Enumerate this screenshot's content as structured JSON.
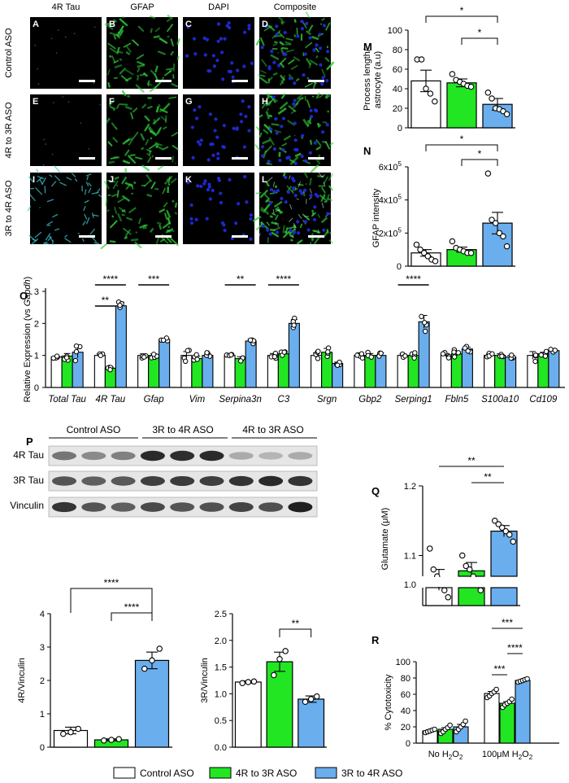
{
  "figure": {
    "micro": {
      "col_headers": [
        "4R Tau",
        "GFAP",
        "DAPI",
        "Composite"
      ],
      "row_labels": [
        "Control ASO",
        "4R to 3R ASO",
        "3R to 4R ASO"
      ],
      "panel_letters": [
        "A",
        "B",
        "C",
        "D",
        "E",
        "F",
        "G",
        "H",
        "I",
        "J",
        "K",
        "L"
      ],
      "channel_colors": {
        "tau": "#3cc8cf",
        "gfap": "#2ecf3a",
        "dapi": "#1f2ad6"
      }
    },
    "western": {
      "letter": "P",
      "groups": [
        "Control ASO",
        "3R to 4R ASO",
        "4R to 3R ASO"
      ],
      "rows": [
        "4R Tau",
        "3R Tau",
        "Vinculin"
      ],
      "band_intensity": {
        "4R Tau": [
          0.55,
          0.45,
          0.5,
          0.9,
          0.88,
          0.9,
          0.3,
          0.25,
          0.3
        ],
        "3R Tau": [
          0.7,
          0.65,
          0.68,
          0.8,
          0.82,
          0.8,
          0.85,
          0.9,
          0.85
        ],
        "Vinculin": [
          0.85,
          0.7,
          0.65,
          0.75,
          0.7,
          0.72,
          0.78,
          0.72,
          0.95
        ]
      }
    },
    "legend": {
      "items": [
        {
          "label": "Control ASO",
          "color": "#ffffff"
        },
        {
          "label": "4R to 3R ASO",
          "color": "#22e622"
        },
        {
          "label": "3R to 4R ASO",
          "color": "#6aaeee"
        }
      ]
    },
    "sub_h2o2": "2"
  },
  "chart_data": [
    {
      "letter": "M",
      "type": "bar",
      "ylabel_lines": [
        "Process length/",
        "astrocyte (a.u)"
      ],
      "ylim": [
        0,
        100
      ],
      "ticks": [
        0,
        20,
        40,
        60,
        80,
        100
      ],
      "values": [
        48,
        46,
        24
      ],
      "errors": [
        11,
        4,
        6
      ],
      "points": [
        [
          70,
          70,
          40,
          35,
          27
        ],
        [
          55,
          49,
          47,
          45,
          43,
          42
        ],
        [
          36,
          30,
          20,
          19,
          17,
          14
        ]
      ],
      "brackets": [
        {
          "from": 0,
          "to": 2,
          "label": "*"
        },
        {
          "from": 1,
          "to": 2,
          "label": "*"
        }
      ]
    },
    {
      "letter": "N",
      "type": "bar",
      "ylabel": "GFAP intensity",
      "ylim": [
        0,
        600000
      ],
      "tick_labels": [
        "0",
        "2x10",
        "4x10",
        "6x10"
      ],
      "tick_exp": "5",
      "values": [
        80000,
        100000,
        260000
      ],
      "errors": [
        20000,
        15000,
        65000
      ],
      "points": [
        [
          130000,
          100000,
          80000,
          60000,
          40000,
          30000
        ],
        [
          150000,
          110000,
          100000,
          90000,
          80000,
          80000
        ],
        [
          560000,
          280000,
          260000,
          200000,
          180000,
          120000
        ]
      ],
      "brackets": [
        {
          "from": 0,
          "to": 2,
          "label": "*"
        },
        {
          "from": 1,
          "to": 2,
          "label": "*"
        }
      ]
    },
    {
      "letter": "O",
      "type": "bar",
      "ylabel": "Relative Expression (vs ",
      "ylabel_italic": "Gapdh",
      "ylabel_end": ")",
      "ylim": [
        0,
        3
      ],
      "ticks": [
        0,
        1,
        2,
        3
      ],
      "categories": [
        "Total Tau",
        "4R Tau",
        "Gfap",
        "Vim",
        "Serpina3n",
        "C3",
        "Srgn",
        "Gbp2",
        "Serping1",
        "Fbln5",
        "S100a10",
        "Cd109"
      ],
      "series": [
        {
          "name": "Control ASO",
          "values": [
            0.95,
            1.0,
            1.0,
            1.0,
            1.0,
            1.0,
            1.0,
            1.0,
            1.0,
            1.0,
            1.0,
            1.0
          ],
          "errors": [
            0.03,
            0.05,
            0.05,
            0.12,
            0.06,
            0.06,
            0.08,
            0.08,
            0.05,
            0.06,
            0.05,
            0.12
          ]
        },
        {
          "name": "4R to 3R ASO",
          "values": [
            0.98,
            0.6,
            1.0,
            0.9,
            0.9,
            1.05,
            1.1,
            1.0,
            1.0,
            1.05,
            1.0,
            1.05
          ],
          "errors": [
            0.08,
            0.03,
            0.05,
            0.08,
            0.06,
            0.05,
            0.12,
            0.06,
            0.06,
            0.08,
            0.05,
            0.05
          ]
        },
        {
          "name": "3R to 4R ASO",
          "values": [
            1.1,
            2.55,
            1.5,
            1.0,
            1.45,
            2.0,
            0.75,
            1.0,
            2.05,
            1.2,
            0.95,
            1.15
          ],
          "errors": [
            0.18,
            0.12,
            0.03,
            0.06,
            0.06,
            0.12,
            0.04,
            0.08,
            0.2,
            0.06,
            0.05,
            0.03
          ]
        }
      ],
      "sig": [
        {
          "cat": 1,
          "from": 0,
          "to": 2,
          "label": "****",
          "level": 0
        },
        {
          "cat": 1,
          "from": 0,
          "to": 1,
          "label": "**",
          "level": 1
        },
        {
          "cat": 2,
          "from": 0,
          "to": 2,
          "label": "***",
          "level": 0
        },
        {
          "cat": 4,
          "from": 0,
          "to": 2,
          "label": "**",
          "level": 0
        },
        {
          "cat": 5,
          "from": 0,
          "to": 2,
          "label": "****",
          "level": 0
        },
        {
          "cat": 8,
          "from": 0,
          "to": 2,
          "label": "****",
          "level": 0
        }
      ]
    },
    {
      "letter": "P1",
      "type": "bar",
      "ylabel": "4R/Vinculin",
      "ylim": [
        0,
        4
      ],
      "ticks": [
        0,
        1,
        2,
        3,
        4
      ],
      "values": [
        0.5,
        0.22,
        2.6
      ],
      "errors": [
        0.1,
        0.03,
        0.25
      ],
      "points": [
        [
          0.4,
          0.45,
          0.55
        ],
        [
          0.2,
          0.22,
          0.24
        ],
        [
          2.35,
          2.6,
          2.95
        ]
      ],
      "brackets": [
        {
          "from": 0,
          "to": 2,
          "label": "****"
        },
        {
          "from": 1,
          "to": 2,
          "label": "****"
        }
      ]
    },
    {
      "letter": "P2",
      "type": "bar",
      "ylabel": "3R/Vinculin",
      "ylim": [
        0,
        2.5
      ],
      "ticks": [
        0,
        0.5,
        1.0,
        1.5,
        2.0,
        2.5
      ],
      "values": [
        1.22,
        1.6,
        0.9
      ],
      "errors": [
        0.02,
        0.18,
        0.06
      ],
      "points": [
        [
          1.2,
          1.22,
          1.23
        ],
        [
          1.35,
          1.65,
          1.8
        ],
        [
          0.85,
          0.9,
          0.95
        ]
      ],
      "brackets": [
        {
          "from": 1,
          "to": 2,
          "label": "**"
        }
      ]
    },
    {
      "letter": "Q",
      "type": "bar",
      "ylabel": "Glutamate (μM)",
      "ylim": [
        1.0,
        1.2
      ],
      "ticks": [
        1.1,
        1.2
      ],
      "break_label": "1.0",
      "values": [
        1.065,
        1.078,
        1.135
      ],
      "errors": [
        0.015,
        0.012,
        0.008
      ],
      "points": [
        [
          1.11,
          1.08,
          1.07,
          1.06,
          1.05,
          1.04
        ],
        [
          1.1,
          1.085,
          1.08,
          1.07,
          1.06,
          1.05
        ],
        [
          1.15,
          1.145,
          1.14,
          1.135,
          1.13,
          1.12
        ]
      ],
      "brackets": [
        {
          "from": 0,
          "to": 2,
          "label": "**"
        },
        {
          "from": 1,
          "to": 2,
          "label": "**"
        }
      ]
    },
    {
      "letter": "R",
      "type": "bar",
      "ylabel": "% Cytotoxicity",
      "ylim": [
        0,
        100
      ],
      "ticks": [
        0,
        20,
        40,
        60,
        80,
        100
      ],
      "categories": [
        "No H",
        "100μM H"
      ],
      "cat_suffix": "O",
      "series": [
        {
          "name": "Control ASO",
          "values": [
            15,
            61
          ],
          "errors": [
            1.5,
            2.5
          ]
        },
        {
          "name": "4R to 3R ASO",
          "values": [
            17,
            49
          ],
          "errors": [
            2,
            2
          ]
        },
        {
          "name": "3R to 4R ASO",
          "values": [
            20,
            77
          ],
          "errors": [
            3,
            1
          ]
        }
      ],
      "points": [
        [
          [
            13,
            14,
            15,
            16,
            17
          ],
          [
            56,
            58,
            61,
            63,
            66
          ]
        ],
        [
          [
            12,
            14,
            17,
            19,
            22
          ],
          [
            44,
            47,
            49,
            51,
            54
          ]
        ],
        [
          [
            14,
            17,
            20,
            23,
            27
          ],
          [
            75,
            76,
            77,
            78,
            79
          ]
        ]
      ],
      "sig": [
        {
          "cat": 1,
          "from": 0,
          "to": 1,
          "label": "***",
          "level": 0
        },
        {
          "cat": 1,
          "from": 1,
          "to": 2,
          "label": "****",
          "level": 1
        },
        {
          "cat": 1,
          "from": 0,
          "to": 2,
          "label": "***",
          "level": 2
        }
      ]
    }
  ]
}
